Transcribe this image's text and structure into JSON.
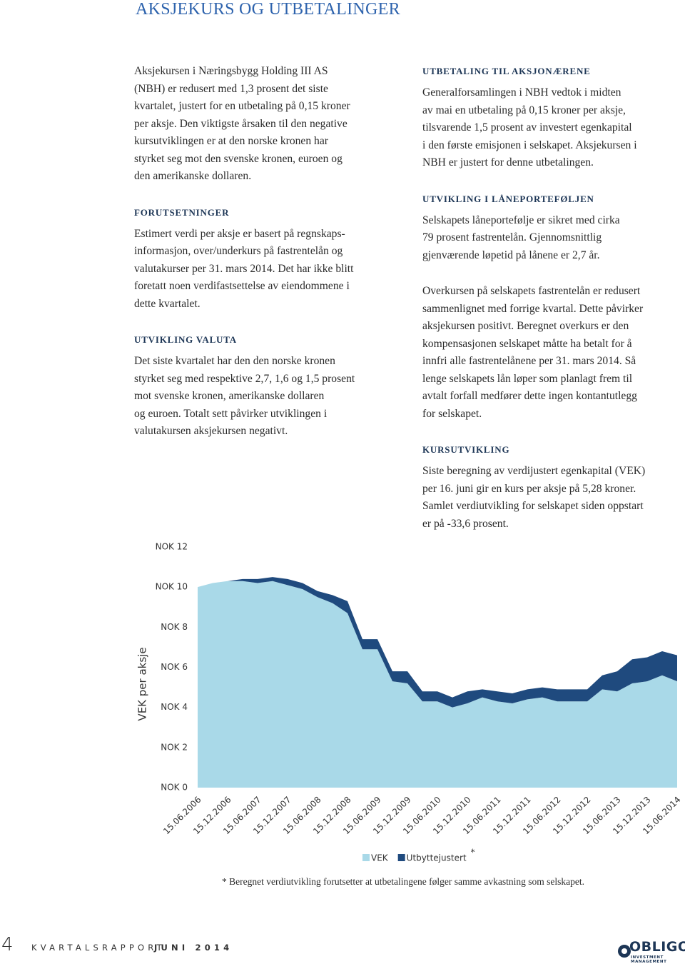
{
  "header": {
    "title": "AKSJEKURS OG UTBETALINGER"
  },
  "left_column": [
    {
      "lines": [
        "Aksjekursen i Næringsbygg Holding III AS",
        "(NBH) er redusert med 1,3 prosent det siste",
        "kvartalet, justert for en utbetaling på 0,15 kroner",
        "per aksje. Den viktigste årsaken til den negative",
        "kursutviklingen er at den norske kronen har",
        "styrket seg mot den svenske kronen, euroen og",
        "den amerikanske dollaren."
      ]
    },
    {
      "heading": "FORUTSETNINGER"
    },
    {
      "lines": [
        "Estimert verdi per aksje er basert på regnskaps-",
        "informasjon, over/underkurs på fastrentelån og",
        "valutakurser per 31. mars 2014. Det har ikke blitt",
        "foretatt noen verdifastsettelse av eiendommene i",
        "dette kvartalet."
      ]
    },
    {
      "heading": "UTVIKLING VALUTA"
    },
    {
      "lines": [
        "Det siste kvartalet har den den norske kronen",
        "styrket seg med respektive 2,7, 1,6 og 1,5 prosent",
        "mot svenske kronen, amerikanske dollaren",
        "og euroen. Totalt sett påvirker utviklingen i",
        "valutakursen aksjekursen negativt."
      ]
    }
  ],
  "right_column": [
    {
      "heading": "UTBETALING TIL AKSJONÆRENE"
    },
    {
      "lines": [
        "Generalforsamlingen i NBH vedtok i midten",
        "av mai en utbetaling på 0,15 kroner per aksje,",
        "tilsvarende 1,5 prosent av investert egenkapital",
        "i den første emisjonen i selskapet. Aksjekursen i",
        "NBH er justert for denne utbetalingen."
      ]
    },
    {
      "heading": "UTVIKLING I LÅNEPORTEFØLJEN"
    },
    {
      "lines": [
        "Selskapets låneportefølje er sikret med cirka",
        "79 prosent fastrentelån. Gjennomsnittlig",
        "gjenværende løpetid på lånene er 2,7 år."
      ]
    },
    {
      "lines": [
        "Overkursen på selskapets fastrentelån er redusert",
        "sammenlignet med forrige kvartal. Dette påvirker",
        "aksjekursen positivt. Beregnet overkurs er den",
        "kompensasjonen selskapet måtte ha betalt for å",
        "innfri alle fastrentelånene per 31. mars 2014. Så",
        "lenge selskapets lån løper som planlagt frem til",
        "avtalt forfall medfører dette ingen kontantutlegg",
        "for selskapet."
      ]
    },
    {
      "heading": "KURSUTVIKLING"
    },
    {
      "lines": [
        "Siste beregning av verdijustert egenkapital (VEK)",
        "per 16. juni gir en kurs per aksje på 5,28 kroner.",
        "Samlet verdiutvikling for selskapet siden oppstart",
        "er på -33,6 prosent."
      ]
    }
  ],
  "chart_data": {
    "type": "stacked_area",
    "ylabel": "VEK per aksje",
    "categories": [
      "15.06.2006",
      null,
      "15.12.2006",
      null,
      "15.06.2007",
      null,
      "15.12.2007",
      null,
      "15.06.2008",
      null,
      "15.12.2008",
      null,
      "15.06.2009",
      null,
      "15.12.2009",
      null,
      "15.06.2010",
      null,
      "15.12.2010",
      null,
      "15.06.2011",
      null,
      "15.12.2011",
      null,
      "15.06.2012",
      null,
      "15.12.2012",
      null,
      "15.06.2013",
      null,
      "15.12.2013",
      null,
      "15.06.2014"
    ],
    "series": [
      {
        "name": "VEK",
        "color": "#a9d9e8",
        "values": [
          10.0,
          10.2,
          10.3,
          10.3,
          10.2,
          10.3,
          10.1,
          9.9,
          9.5,
          9.2,
          8.7,
          6.9,
          6.9,
          5.3,
          5.2,
          4.3,
          4.3,
          4.0,
          4.2,
          4.5,
          4.3,
          4.2,
          4.4,
          4.5,
          4.3,
          4.3,
          4.3,
          4.9,
          4.8,
          5.2,
          5.3,
          5.6,
          5.3
        ]
      },
      {
        "name": "Utbyttejustert",
        "color": "#1f4a7e",
        "values": [
          0,
          0,
          0,
          0.1,
          0.2,
          0.2,
          0.3,
          0.3,
          0.3,
          0.4,
          0.6,
          0.5,
          0.5,
          0.5,
          0.6,
          0.5,
          0.5,
          0.5,
          0.6,
          0.4,
          0.5,
          0.5,
          0.5,
          0.5,
          0.6,
          0.6,
          0.6,
          0.7,
          1.0,
          1.2,
          1.2,
          1.2,
          1.3
        ]
      }
    ],
    "legend_note": "*",
    "ylim": [
      0,
      12
    ],
    "yticks": [
      {
        "value": 0,
        "label": "NOK 0"
      },
      {
        "value": 2,
        "label": "NOK 2"
      },
      {
        "value": 4,
        "label": "NOK 4"
      },
      {
        "value": 6,
        "label": "NOK 6"
      },
      {
        "value": 8,
        "label": "NOK 8"
      },
      {
        "value": 10,
        "label": "NOK 10"
      },
      {
        "value": 12,
        "label": "NOK 12"
      }
    ],
    "grid": false
  },
  "footnote": "* Beregnet verdiutvikling forutsetter at utbetalingene følger samme avkastning som selskapet.",
  "footer": {
    "page_number": "4",
    "report": "KVARTALSRAPPORT",
    "issue": "JUNI 2014",
    "logo_name": "OBLIGO",
    "logo_tagline": "INVESTMENT MANAGEMENT"
  }
}
